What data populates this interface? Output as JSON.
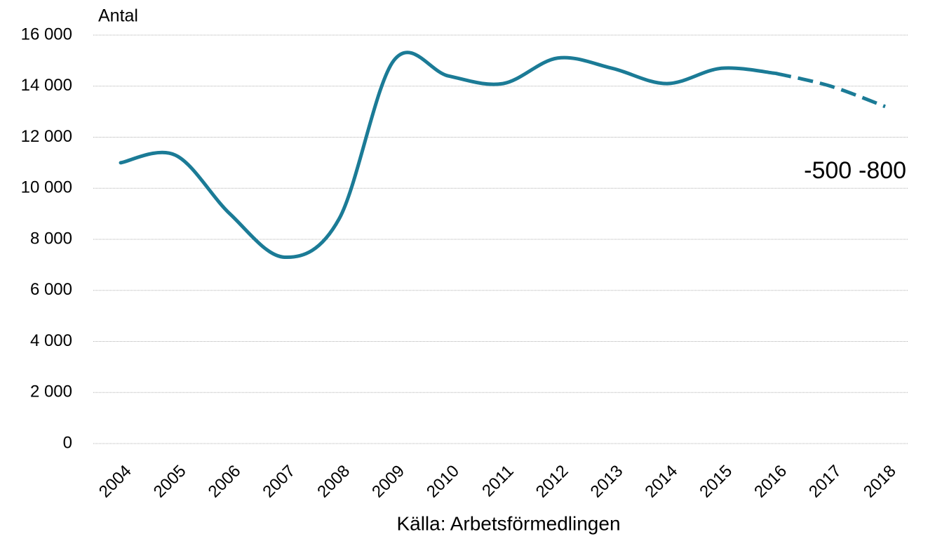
{
  "chart_data": {
    "type": "line",
    "y_label": "Antal",
    "source": "Källa: Arbetsförmedlingen",
    "categories": [
      "2004",
      "2005",
      "2006",
      "2007",
      "2008",
      "2009",
      "2010",
      "2011",
      "2012",
      "2013",
      "2014",
      "2015",
      "2016",
      "2017",
      "2018"
    ],
    "series": [
      {
        "color": "#1b7b96",
        "dashed": false,
        "values": [
          11000,
          11300,
          9000,
          7300,
          8800,
          15000,
          14400,
          14100,
          15100,
          14700,
          14100,
          14700,
          14500,
          null,
          null
        ]
      },
      {
        "color": "#1b7b96",
        "dashed": true,
        "values": [
          null,
          null,
          null,
          null,
          null,
          null,
          null,
          null,
          null,
          null,
          null,
          null,
          14500,
          14000,
          13200
        ]
      }
    ],
    "annotations": [
      {
        "text": "-500",
        "category": 13
      },
      {
        "text": "-800",
        "category": 14
      }
    ],
    "ylim": [
      0,
      16000
    ],
    "yticks": [
      {
        "value": 0,
        "label": "0"
      },
      {
        "value": 2000,
        "label": "2 000"
      },
      {
        "value": 4000,
        "label": "4 000"
      },
      {
        "value": 6000,
        "label": "6 000"
      },
      {
        "value": 8000,
        "label": "8 000"
      },
      {
        "value": 10000,
        "label": "10 000"
      },
      {
        "value": 12000,
        "label": "12 000"
      },
      {
        "value": 14000,
        "label": "14 000"
      },
      {
        "value": 16000,
        "label": "16 000"
      }
    ],
    "grid": true
  }
}
